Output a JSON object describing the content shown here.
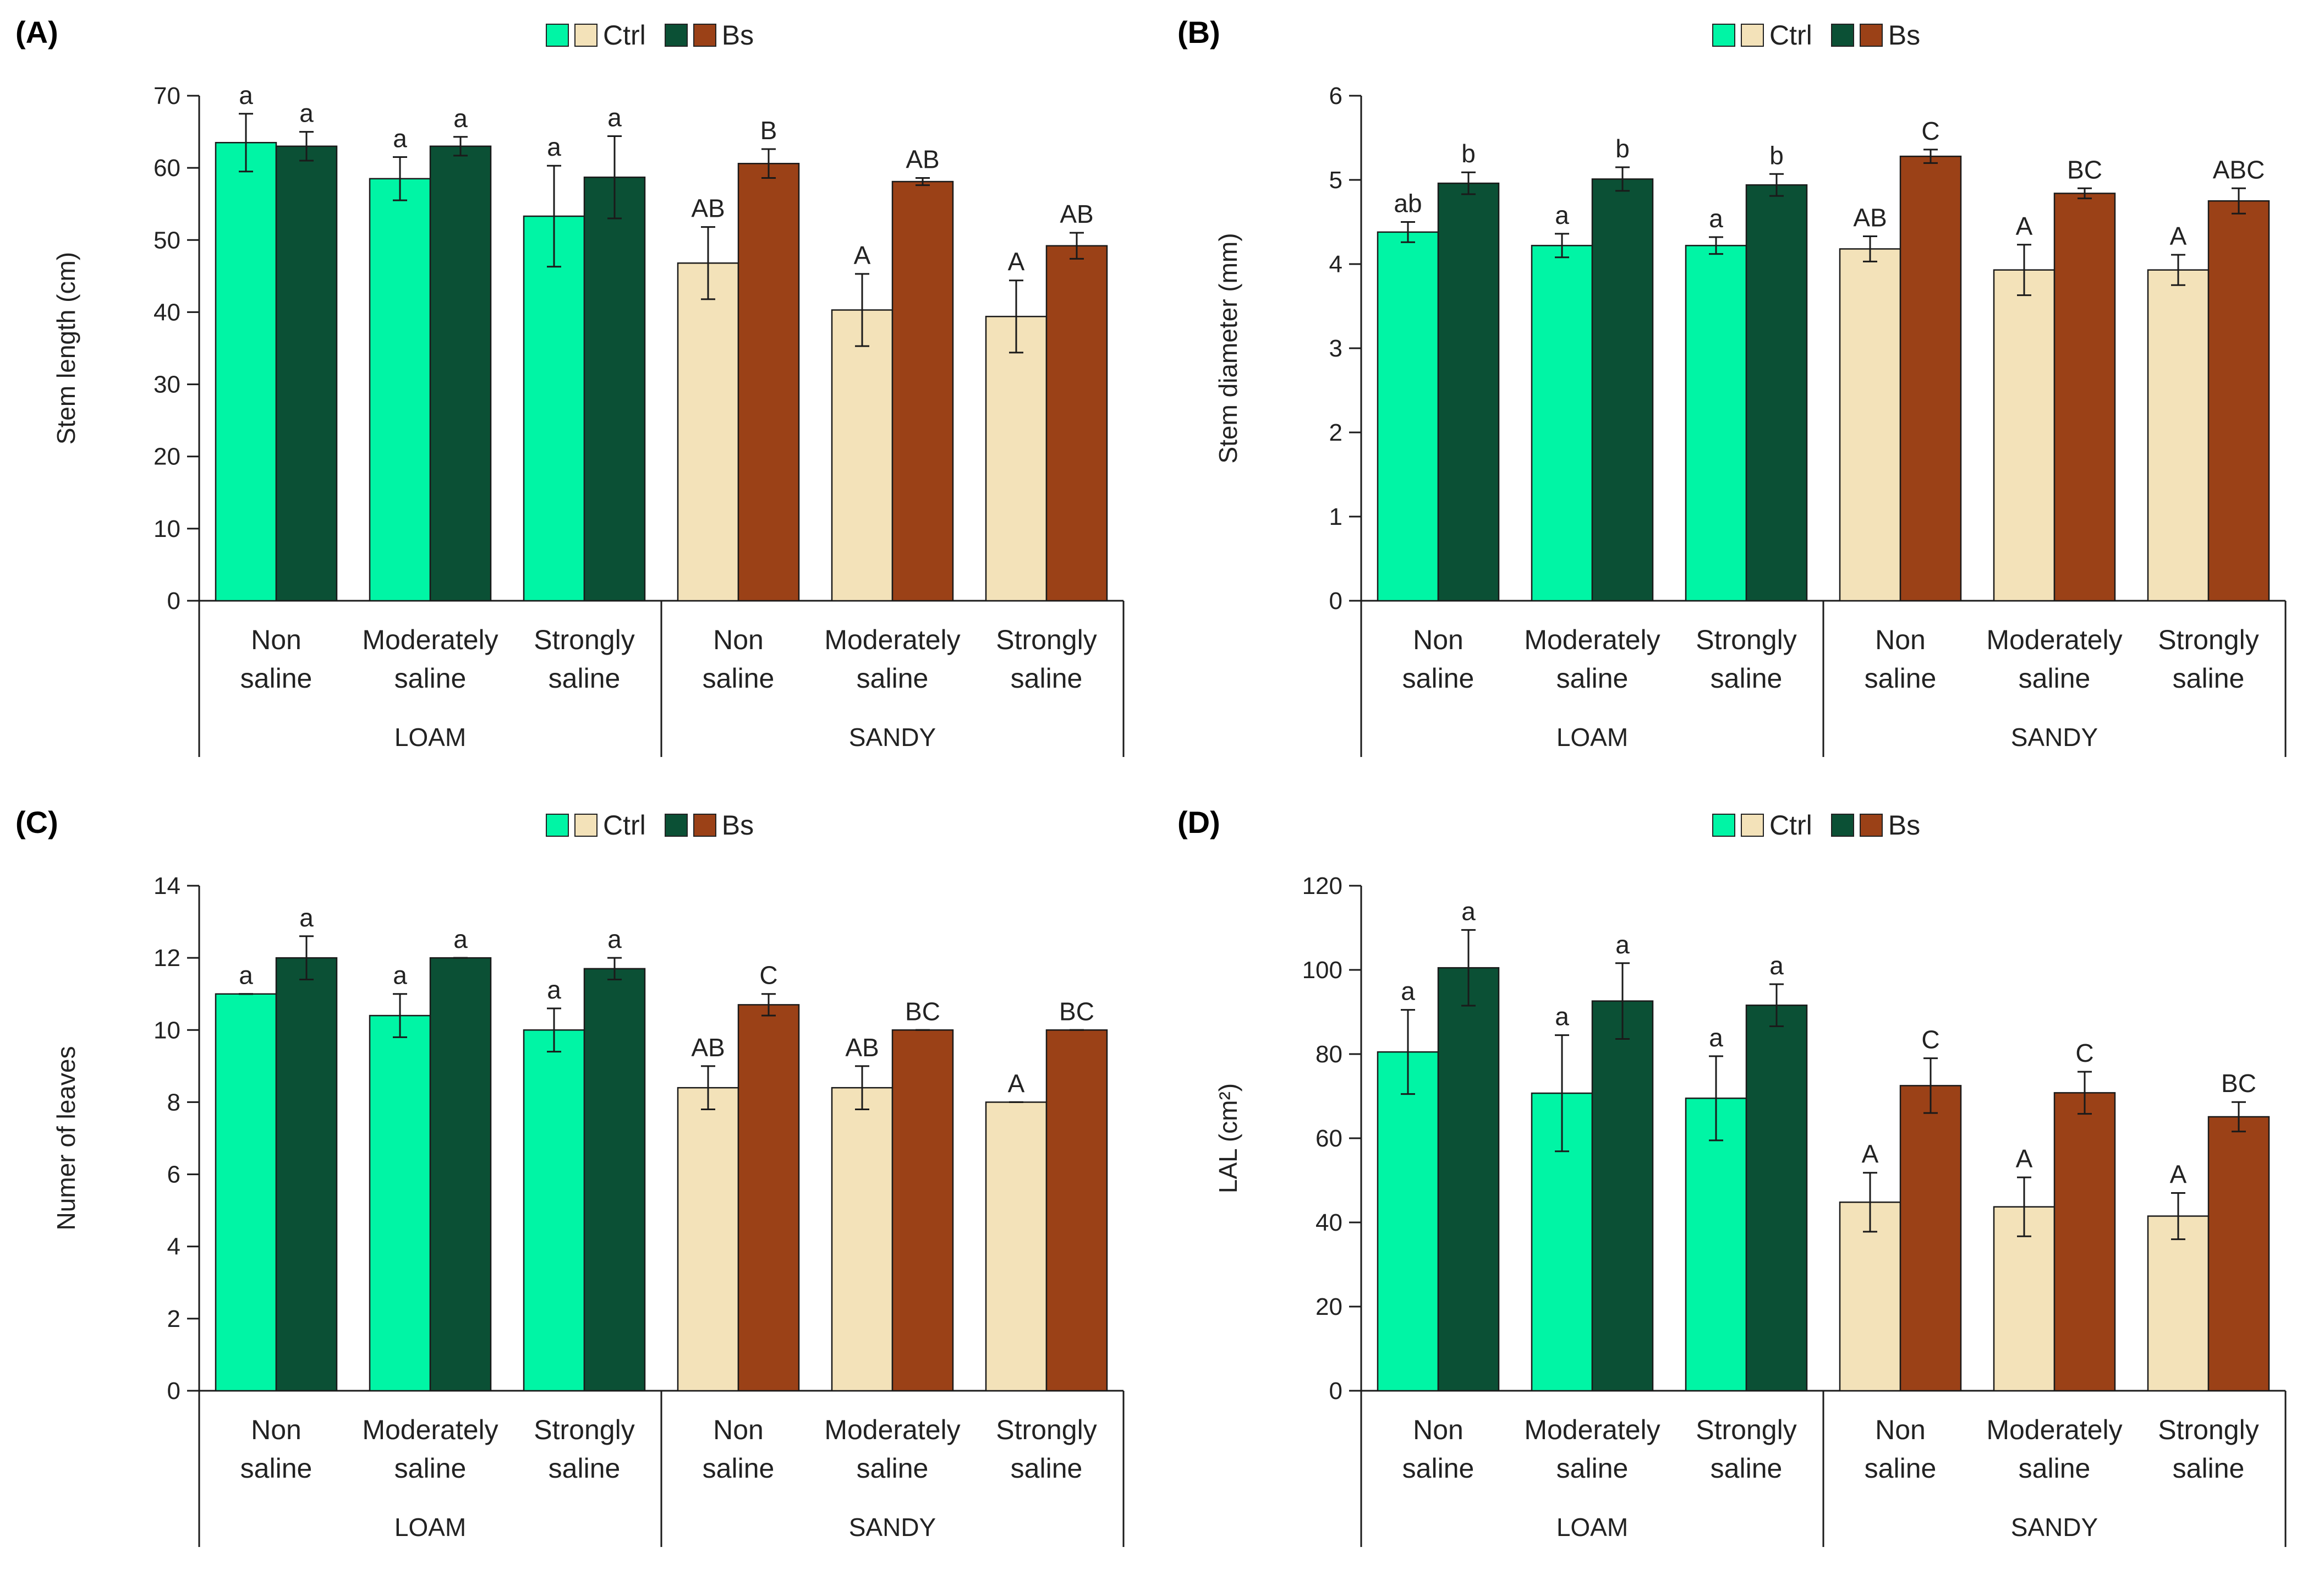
{
  "legend": {
    "ctrl": "Ctrl",
    "bs": "Bs"
  },
  "colors": {
    "loam_ctrl": "#00f5a5",
    "loam_bs": "#0b5035",
    "sandy_ctrl": "#f3e2b9",
    "sandy_bs": "#9b4117",
    "axis": "#1a1a1a"
  },
  "categories": [
    {
      "line1": "Non",
      "line2": "saline"
    },
    {
      "line1": "Moderately",
      "line2": "saline"
    },
    {
      "line1": "Strongly",
      "line2": "saline"
    },
    {
      "line1": "Non",
      "line2": "saline"
    },
    {
      "line1": "Moderately",
      "line2": "saline"
    },
    {
      "line1": "Strongly",
      "line2": "saline"
    }
  ],
  "groups": [
    "LOAM",
    "SANDY"
  ],
  "chart_data": [
    {
      "panel": "(A)",
      "type": "bar",
      "ylabel": "Stem length (cm)",
      "ylim": [
        0,
        70
      ],
      "yticks": [
        0,
        10,
        20,
        30,
        40,
        50,
        60,
        70
      ],
      "series": [
        {
          "name": "Ctrl",
          "values": [
            63.5,
            58.5,
            53.3,
            46.8,
            40.3,
            39.4
          ],
          "errors": [
            4.0,
            3.0,
            7.0,
            5.0,
            5.0,
            5.0
          ],
          "labels": [
            "a",
            "a",
            "a",
            "AB",
            "A",
            "A"
          ]
        },
        {
          "name": "Bs",
          "values": [
            63.0,
            63.0,
            58.7,
            60.6,
            58.1,
            49.2
          ],
          "errors": [
            2.0,
            1.3,
            5.7,
            2.0,
            0.5,
            1.8
          ],
          "labels": [
            "a",
            "a",
            "a",
            "B",
            "AB",
            "AB"
          ]
        }
      ]
    },
    {
      "panel": "(B)",
      "type": "bar",
      "ylabel": "Stem diameter (mm)",
      "ylim": [
        0,
        6
      ],
      "yticks": [
        0,
        1,
        2,
        3,
        4,
        5,
        6
      ],
      "series": [
        {
          "name": "Ctrl",
          "values": [
            4.38,
            4.22,
            4.22,
            4.18,
            3.93,
            3.93
          ],
          "errors": [
            0.12,
            0.14,
            0.1,
            0.15,
            0.3,
            0.18
          ],
          "labels": [
            "ab",
            "a",
            "a",
            "AB",
            "A",
            "A"
          ]
        },
        {
          "name": "Bs",
          "values": [
            4.96,
            5.01,
            4.94,
            5.28,
            4.84,
            4.75
          ],
          "errors": [
            0.13,
            0.14,
            0.13,
            0.08,
            0.06,
            0.15
          ],
          "labels": [
            "b",
            "b",
            "b",
            "C",
            "BC",
            "ABC"
          ]
        }
      ]
    },
    {
      "panel": "(C)",
      "type": "bar",
      "ylabel": "Numer of leaves",
      "ylim": [
        0,
        14
      ],
      "yticks": [
        0,
        2,
        4,
        6,
        8,
        10,
        12,
        14
      ],
      "series": [
        {
          "name": "Ctrl",
          "values": [
            11.0,
            10.4,
            10.0,
            8.4,
            8.4,
            8.0
          ],
          "errors": [
            0.0,
            0.6,
            0.6,
            0.6,
            0.6,
            0.0
          ],
          "labels": [
            "a",
            "a",
            "a",
            "AB",
            "AB",
            "A"
          ]
        },
        {
          "name": "Bs",
          "values": [
            12.0,
            12.0,
            11.7,
            10.7,
            10.0,
            10.0
          ],
          "errors": [
            0.6,
            0.0,
            0.3,
            0.3,
            0.0,
            0.0
          ],
          "labels": [
            "a",
            "a",
            "a",
            "C",
            "BC",
            "BC"
          ]
        }
      ]
    },
    {
      "panel": "(D)",
      "type": "bar",
      "ylabel": "LAL (cm²)",
      "ylim": [
        0,
        120
      ],
      "yticks": [
        0,
        20,
        40,
        60,
        80,
        100,
        120
      ],
      "series": [
        {
          "name": "Ctrl",
          "values": [
            80.5,
            70.7,
            69.5,
            44.8,
            43.7,
            41.5
          ],
          "errors": [
            10.0,
            13.8,
            10.0,
            7.0,
            7.0,
            5.5
          ],
          "labels": [
            "a",
            "a",
            "a",
            "A",
            "A",
            "A"
          ]
        },
        {
          "name": "Bs",
          "values": [
            100.5,
            92.6,
            91.6,
            72.5,
            70.8,
            65.1
          ],
          "errors": [
            9.0,
            9.0,
            5.0,
            6.5,
            5.0,
            3.5
          ],
          "labels": [
            "a",
            "a",
            "a",
            "C",
            "C",
            "BC"
          ]
        }
      ]
    }
  ]
}
